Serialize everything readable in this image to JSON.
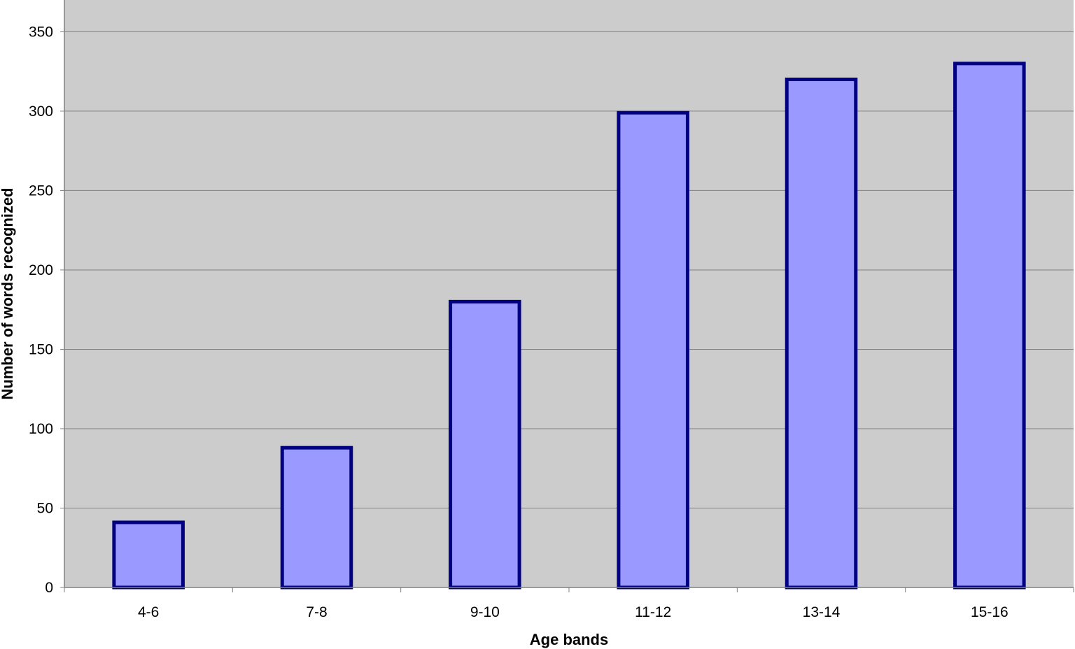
{
  "chart_data": {
    "type": "bar",
    "categories": [
      "4-6",
      "7-8",
      "9-10",
      "11-12",
      "13-14",
      "15-16"
    ],
    "values": [
      41,
      88,
      180,
      299,
      320,
      330
    ],
    "title": "",
    "xlabel": "Age bands",
    "ylabel": "Number of words recognized",
    "ylim": [
      0,
      350
    ],
    "yticks": [
      0,
      50,
      100,
      150,
      200,
      250,
      300,
      350
    ],
    "grid": true,
    "legend": "none",
    "colors": {
      "plot_background": "#cccccc",
      "bar_fill": "#9999ff",
      "bar_stroke": "#000080",
      "gridline": "#808080",
      "axis": "#808080"
    }
  }
}
